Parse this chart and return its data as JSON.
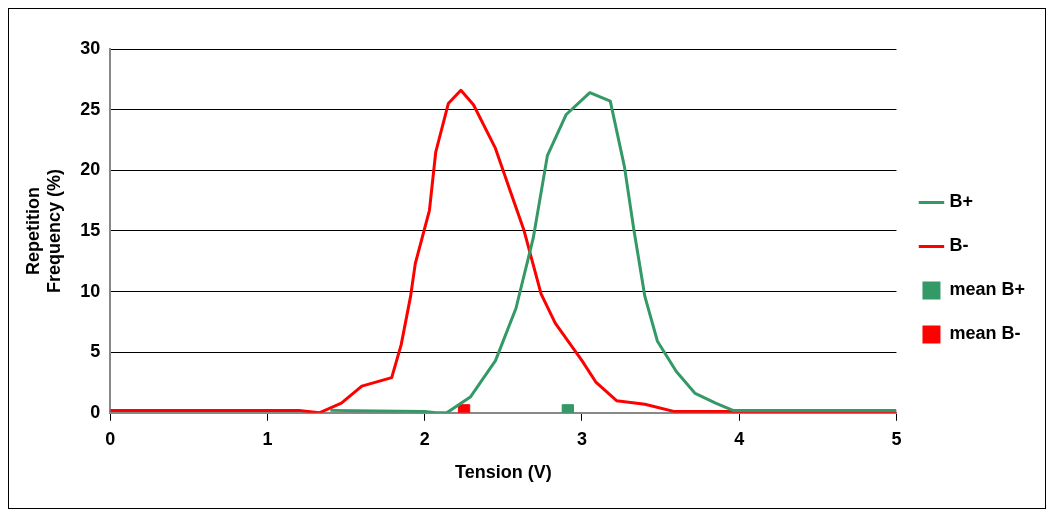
{
  "chart_data": {
    "type": "line",
    "xlabel": "Tension (V)",
    "ylabel": "Repetition Frequency (%)",
    "xlim": [
      0,
      5
    ],
    "xticks": [
      0,
      1,
      2,
      3,
      4,
      5
    ],
    "ylim": [
      0,
      30
    ],
    "yticks": [
      0,
      5,
      10,
      15,
      20,
      25,
      30
    ],
    "grid": "y",
    "legend": "right",
    "line_style": "solid",
    "series": [
      {
        "name": "B+",
        "color": "#339966",
        "marker": "none",
        "x": [
          1.4,
          2,
          2.07,
          2.14,
          2.29,
          2.45,
          2.58,
          2.69,
          2.78,
          2.9,
          3.05,
          3.18,
          3.27,
          3.33,
          3.4,
          3.48,
          3.6,
          3.72,
          3.85,
          3.96,
          4.5,
          5
        ],
        "values": [
          0.2,
          0.1,
          0,
          0,
          1.3,
          4.3,
          8.6,
          14.4,
          21.2,
          24.6,
          26.4,
          25.7,
          20.3,
          15.1,
          9.6,
          5.9,
          3.4,
          1.6,
          0.8,
          0.2,
          0.2,
          0.2
        ]
      },
      {
        "name": "B-",
        "color": "#ff0000",
        "marker": "none",
        "x": [
          0,
          1,
          1.2,
          1.33,
          1.47,
          1.6,
          1.79,
          1.85,
          1.91,
          1.94,
          2.03,
          2.07,
          2.15,
          2.23,
          2.31,
          2.45,
          2.53,
          2.63,
          2.74,
          2.83,
          3.0,
          3.09,
          3.22,
          3.4,
          3.59,
          4,
          5
        ],
        "values": [
          0.2,
          0.2,
          0.2,
          0,
          0.8,
          2.2,
          2.9,
          5.6,
          9.6,
          12.3,
          16.7,
          21.5,
          25.5,
          26.6,
          25.4,
          21.8,
          18.8,
          15.1,
          9.8,
          7.4,
          4.3,
          2.5,
          1.0,
          0.7,
          0.1,
          0.1,
          0.1
        ]
      },
      {
        "name": "mean B+",
        "color": "#339966",
        "type": "scatter",
        "marker": "square",
        "x": [
          2.91
        ],
        "values": [
          0.2
        ]
      },
      {
        "name": "mean B-",
        "color": "#ff0000",
        "type": "scatter",
        "marker": "square",
        "x": [
          2.25
        ],
        "values": [
          0.2
        ]
      }
    ]
  }
}
